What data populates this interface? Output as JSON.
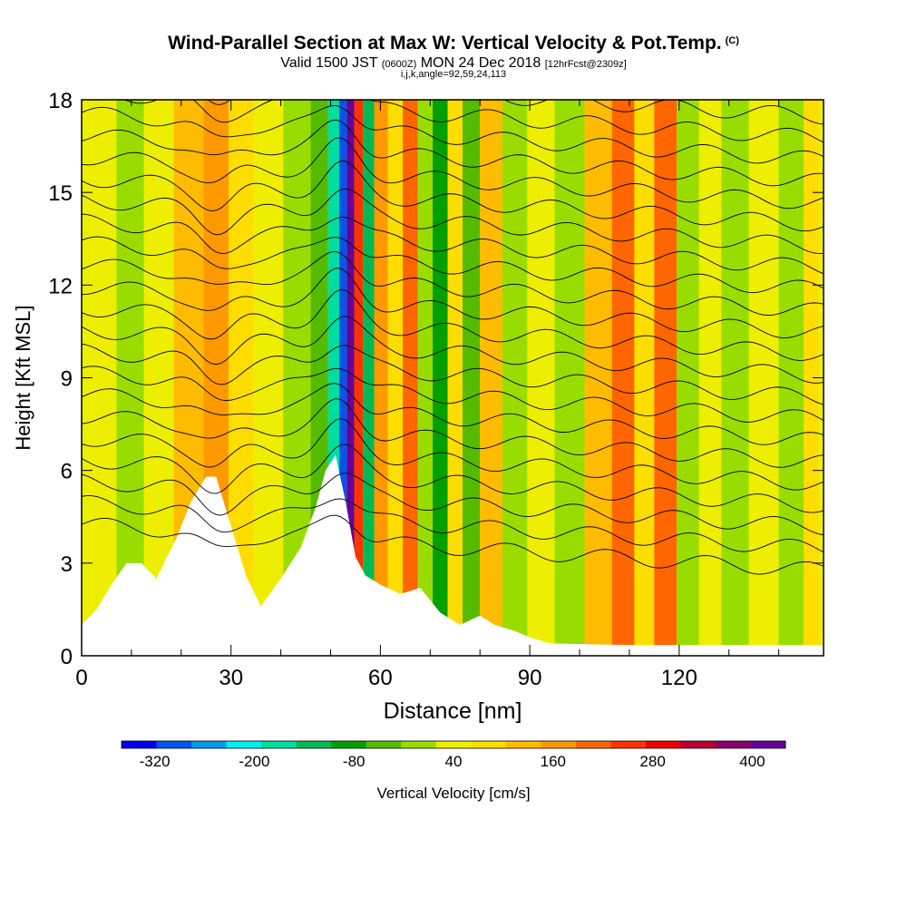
{
  "title": {
    "main": "Wind-Parallel Section at Max W: Vertical Velocity & Pot.Temp.",
    "copyright_mark": "(C)",
    "valid_prefix": "Valid 1500 JST",
    "valid_utc": "(0600Z)",
    "valid_date": "MON 24 Dec 2018",
    "forecast_tag": "[12hrFcst@2309z]",
    "indices": "i,j,k,angle=92,59,24,113"
  },
  "colors": {
    "velocity_scale": [
      "#0000ee",
      "#0055ee",
      "#0099ee",
      "#00eeee",
      "#00dda0",
      "#00bb55",
      "#00a000",
      "#55bb00",
      "#99dd00",
      "#eeee00",
      "#ffdd00",
      "#ffbb00",
      "#ff9900",
      "#ff6600",
      "#ff3300",
      "#ee0000",
      "#bb0033",
      "#880066",
      "#660099"
    ],
    "terrain": "#ffffff",
    "contour": "#000000"
  },
  "chart_data": {
    "type": "heatmap",
    "xlabel": "Distance [nm]",
    "ylabel": "Height [Kft MSL]",
    "xlim": [
      0,
      149
    ],
    "ylim": [
      0,
      18
    ],
    "x_ticks": [
      0,
      30,
      60,
      90,
      120
    ],
    "y_ticks": [
      0,
      3,
      6,
      9,
      12,
      15,
      18
    ],
    "colorbar": {
      "label": "Vertical Velocity [cm/s]",
      "tick_labels": [
        "-320",
        "-200",
        "-80",
        "40",
        "160",
        "280",
        "400"
      ],
      "min": -360,
      "max": 440,
      "step": 40
    },
    "velocity_columns": [
      {
        "x": 4,
        "w": 0
      },
      {
        "x": 10,
        "w": -40
      },
      {
        "x": 15,
        "w": 0
      },
      {
        "x": 22,
        "w": 80
      },
      {
        "x": 27,
        "w": 120
      },
      {
        "x": 32,
        "w": 40
      },
      {
        "x": 37,
        "w": 0
      },
      {
        "x": 44,
        "w": -40
      },
      {
        "x": 48,
        "w": -80
      },
      {
        "x": 51,
        "w": -200
      },
      {
        "x": 52.5,
        "w": -320
      },
      {
        "x": 54,
        "w": 360
      },
      {
        "x": 55.5,
        "w": 200
      },
      {
        "x": 57.5,
        "w": -160
      },
      {
        "x": 60,
        "w": 120
      },
      {
        "x": 63,
        "w": 40
      },
      {
        "x": 66,
        "w": 160
      },
      {
        "x": 69,
        "w": -40
      },
      {
        "x": 72,
        "w": -120
      },
      {
        "x": 75,
        "w": 40
      },
      {
        "x": 78,
        "w": -80
      },
      {
        "x": 82,
        "w": 80
      },
      {
        "x": 87,
        "w": -40
      },
      {
        "x": 92,
        "w": 0
      },
      {
        "x": 98,
        "w": -40
      },
      {
        "x": 104,
        "w": 80
      },
      {
        "x": 109,
        "w": 160
      },
      {
        "x": 113,
        "w": 40
      },
      {
        "x": 117,
        "w": 160
      },
      {
        "x": 122,
        "w": -40
      },
      {
        "x": 126,
        "w": 0
      },
      {
        "x": 131,
        "w": -40
      },
      {
        "x": 137,
        "w": 0
      },
      {
        "x": 143,
        "w": -40
      },
      {
        "x": 147,
        "w": 40
      }
    ],
    "terrain_profile": [
      [
        0,
        1.0
      ],
      [
        3,
        1.5
      ],
      [
        6,
        2.3
      ],
      [
        9,
        3.0
      ],
      [
        12,
        3.0
      ],
      [
        15,
        2.5
      ],
      [
        19,
        3.8
      ],
      [
        22,
        5.0
      ],
      [
        25,
        5.8
      ],
      [
        27,
        5.8
      ],
      [
        30,
        4.2
      ],
      [
        33,
        2.6
      ],
      [
        36,
        1.6
      ],
      [
        40,
        2.5
      ],
      [
        44,
        3.5
      ],
      [
        47,
        4.8
      ],
      [
        49,
        6.0
      ],
      [
        51,
        6.5
      ],
      [
        53,
        5.0
      ],
      [
        55,
        3.2
      ],
      [
        57,
        2.6
      ],
      [
        60,
        2.3
      ],
      [
        64,
        2.0
      ],
      [
        68,
        2.2
      ],
      [
        72,
        1.4
      ],
      [
        76,
        1.0
      ],
      [
        80,
        1.3
      ],
      [
        83,
        1.0
      ],
      [
        87,
        0.8
      ],
      [
        90,
        0.6
      ],
      [
        94,
        0.4
      ],
      [
        110,
        0.35
      ],
      [
        149,
        0.35
      ]
    ]
  }
}
